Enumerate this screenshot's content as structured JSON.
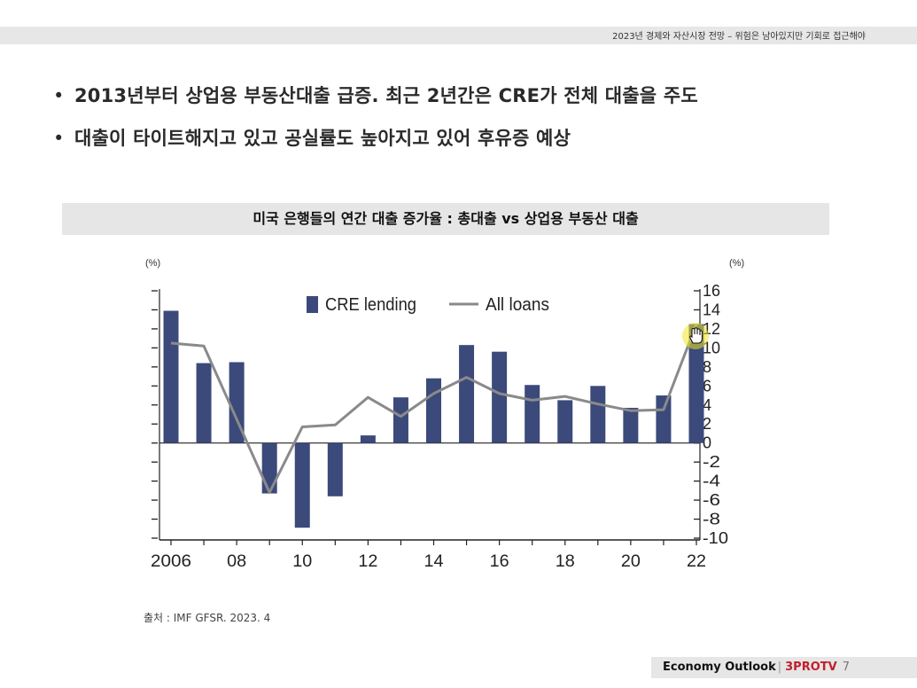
{
  "header": {
    "text": "2023년 경제와 자산시장 전망 – 위험은 남아있지만 기회로 접근해야"
  },
  "bullets": [
    {
      "text": "2013년부터 상업용 부동산대출 급증. 최근 2년간은 CRE가 전체 대출을 주도"
    },
    {
      "text": "대출이 타이트해지고 있고 공실률도 높아지고 있어 후유증 예상"
    }
  ],
  "chart_title": "미국 은행들의 연간 대출 증가율 : 총대출 vs 상업용 부동산 대출",
  "source": "출처 : IMF GFSR. 2023. 4",
  "footer": {
    "left": "Economy Outlook",
    "separator": "|",
    "brand": "3PROTV",
    "page": "7"
  },
  "chart_data": {
    "type": "bar",
    "left_unit": "(%)",
    "right_unit": "(%)",
    "x": [
      2006,
      2007,
      2008,
      2009,
      2010,
      2011,
      2012,
      2013,
      2014,
      2015,
      2016,
      2017,
      2018,
      2019,
      2020,
      2021,
      2022
    ],
    "x_tick_labels": [
      {
        "x": 2006,
        "label": "2006"
      },
      {
        "x": 2008,
        "label": "08"
      },
      {
        "x": 2010,
        "label": "10"
      },
      {
        "x": 2012,
        "label": "12"
      },
      {
        "x": 2014,
        "label": "14"
      },
      {
        "x": 2016,
        "label": "16"
      },
      {
        "x": 2018,
        "label": "18"
      },
      {
        "x": 2020,
        "label": "20"
      },
      {
        "x": 2022,
        "label": "22"
      }
    ],
    "ylim": [
      -10,
      16
    ],
    "yticks": [
      16,
      14,
      12,
      10,
      8,
      6,
      4,
      2,
      0,
      -2,
      -4,
      -6,
      -8,
      -10
    ],
    "series": [
      {
        "name": "CRE lending",
        "kind": "bar",
        "color": "#3b4a7a",
        "values": [
          13.9,
          8.4,
          8.5,
          -5.3,
          -8.9,
          -5.6,
          0.8,
          4.8,
          6.8,
          10.3,
          9.6,
          6.1,
          4.5,
          6.0,
          3.7,
          5.0,
          12.5
        ]
      },
      {
        "name": "All loans",
        "kind": "line",
        "color": "#8a8a8a",
        "values": [
          10.5,
          10.2,
          2.5,
          -5.2,
          1.7,
          1.9,
          4.8,
          2.8,
          5.2,
          6.9,
          5.2,
          4.5,
          4.9,
          4.1,
          3.4,
          3.5,
          12.5
        ]
      }
    ],
    "legend_placement": "top-left",
    "grid": false
  },
  "icons": {
    "cursor": "hand-cursor-icon"
  }
}
